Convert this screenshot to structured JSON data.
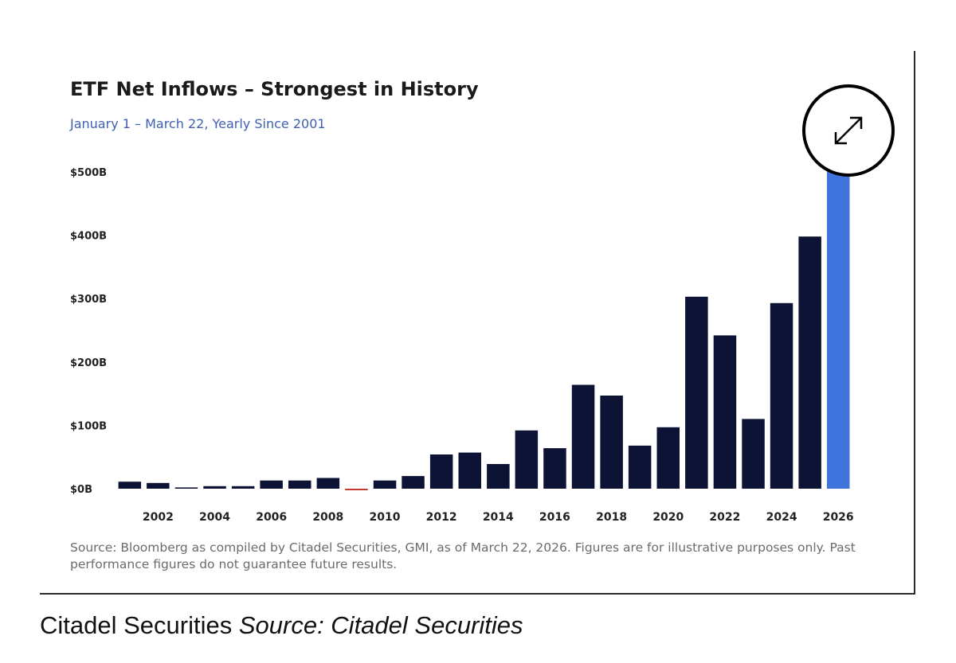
{
  "chart_data": {
    "type": "bar",
    "title": "ETF Net Inflows – Strongest in History",
    "subtitle": "January 1 – March 22, Yearly Since 2001",
    "xlabel": "",
    "ylabel": "",
    "ylim": [
      0,
      525
    ],
    "y_ticks": [
      "$0B",
      "$100B",
      "$200B",
      "$300B",
      "$400B",
      "$500B"
    ],
    "y_tick_values": [
      0,
      100,
      200,
      300,
      400,
      500
    ],
    "x_tick_labels": [
      "2002",
      "2004",
      "2006",
      "2008",
      "2010",
      "2012",
      "2014",
      "2016",
      "2018",
      "2020",
      "2022",
      "2024",
      "2026"
    ],
    "categories": [
      2001,
      2002,
      2003,
      2004,
      2005,
      2006,
      2007,
      2008,
      2009,
      2010,
      2011,
      2012,
      2013,
      2014,
      2015,
      2016,
      2017,
      2018,
      2019,
      2020,
      2021,
      2022,
      2023,
      2024,
      2025,
      2026
    ],
    "values": [
      11,
      9,
      2,
      4,
      4,
      13,
      13,
      17,
      -2,
      13,
      20,
      54,
      57,
      39,
      92,
      64,
      164,
      147,
      68,
      97,
      303,
      242,
      110,
      293,
      398,
      520
    ],
    "grid": false,
    "colors": {
      "positive": "#0d1335",
      "negative": "#c0392b",
      "highlight": "#3e74dc"
    },
    "highlight_category": 2026,
    "source_note": "Source: Bloomberg as compiled by Citadel Securities, GMI, as of March 22, 2026. Figures are for illustrative purposes only. Past performance figures do not guarantee future results."
  },
  "expand_button": {
    "icon": "expand-arrows-icon"
  },
  "caption": {
    "text": "Citadel Securities",
    "source": "Source: Citadel Securities"
  }
}
